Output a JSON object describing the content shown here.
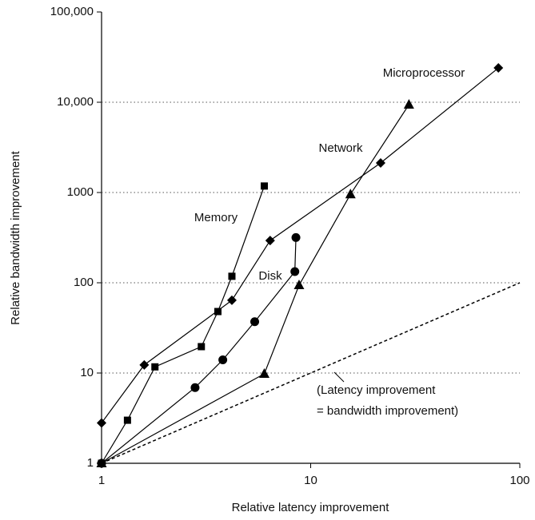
{
  "chart_data": {
    "type": "line",
    "x_label": "Relative latency improvement",
    "y_label": "Relative bandwidth improvement",
    "xscale": "log",
    "yscale": "log",
    "xlim": [
      1,
      100
    ],
    "ylim": [
      1,
      100000
    ],
    "xticks": [
      1,
      10,
      100
    ],
    "yticks": [
      1,
      10,
      100,
      1000,
      {
        "value": 10000,
        "label": "10,000"
      },
      {
        "value": 100000,
        "label": "100,000"
      }
    ],
    "grid": "y",
    "series": [
      {
        "name": "Microprocessor",
        "marker": "diamond",
        "color": "#000000",
        "x": [
          1,
          1.6,
          4.2,
          6.4,
          21.6,
          79
        ],
        "values": [
          2.8,
          12.3,
          64,
          294,
          2126,
          24000
        ]
      },
      {
        "name": "Memory",
        "marker": "square",
        "color": "#000000",
        "x": [
          1,
          1.33,
          1.8,
          3.0,
          3.6,
          4.2,
          6.0
        ],
        "values": [
          1,
          3.0,
          11.7,
          19.6,
          48,
          118,
          1180
        ]
      },
      {
        "name": "Disk",
        "marker": "circle",
        "color": "#000000",
        "x": [
          1,
          2.8,
          3.8,
          5.4,
          8.4,
          8.5
        ],
        "values": [
          1,
          6.9,
          14,
          37,
          133,
          317
        ]
      },
      {
        "name": "Network",
        "marker": "triangle",
        "color": "#000000",
        "x": [
          1,
          6.0,
          8.8,
          15.5,
          29.5
        ],
        "values": [
          1,
          9.8,
          94,
          956,
          9400
        ]
      }
    ],
    "reference": {
      "x": [
        1,
        100
      ],
      "values": [
        1,
        100
      ],
      "style": "dashed"
    },
    "annotation": {
      "lines": [
        "(Latency improvement",
        "= bandwidth improvement)"
      ]
    }
  }
}
